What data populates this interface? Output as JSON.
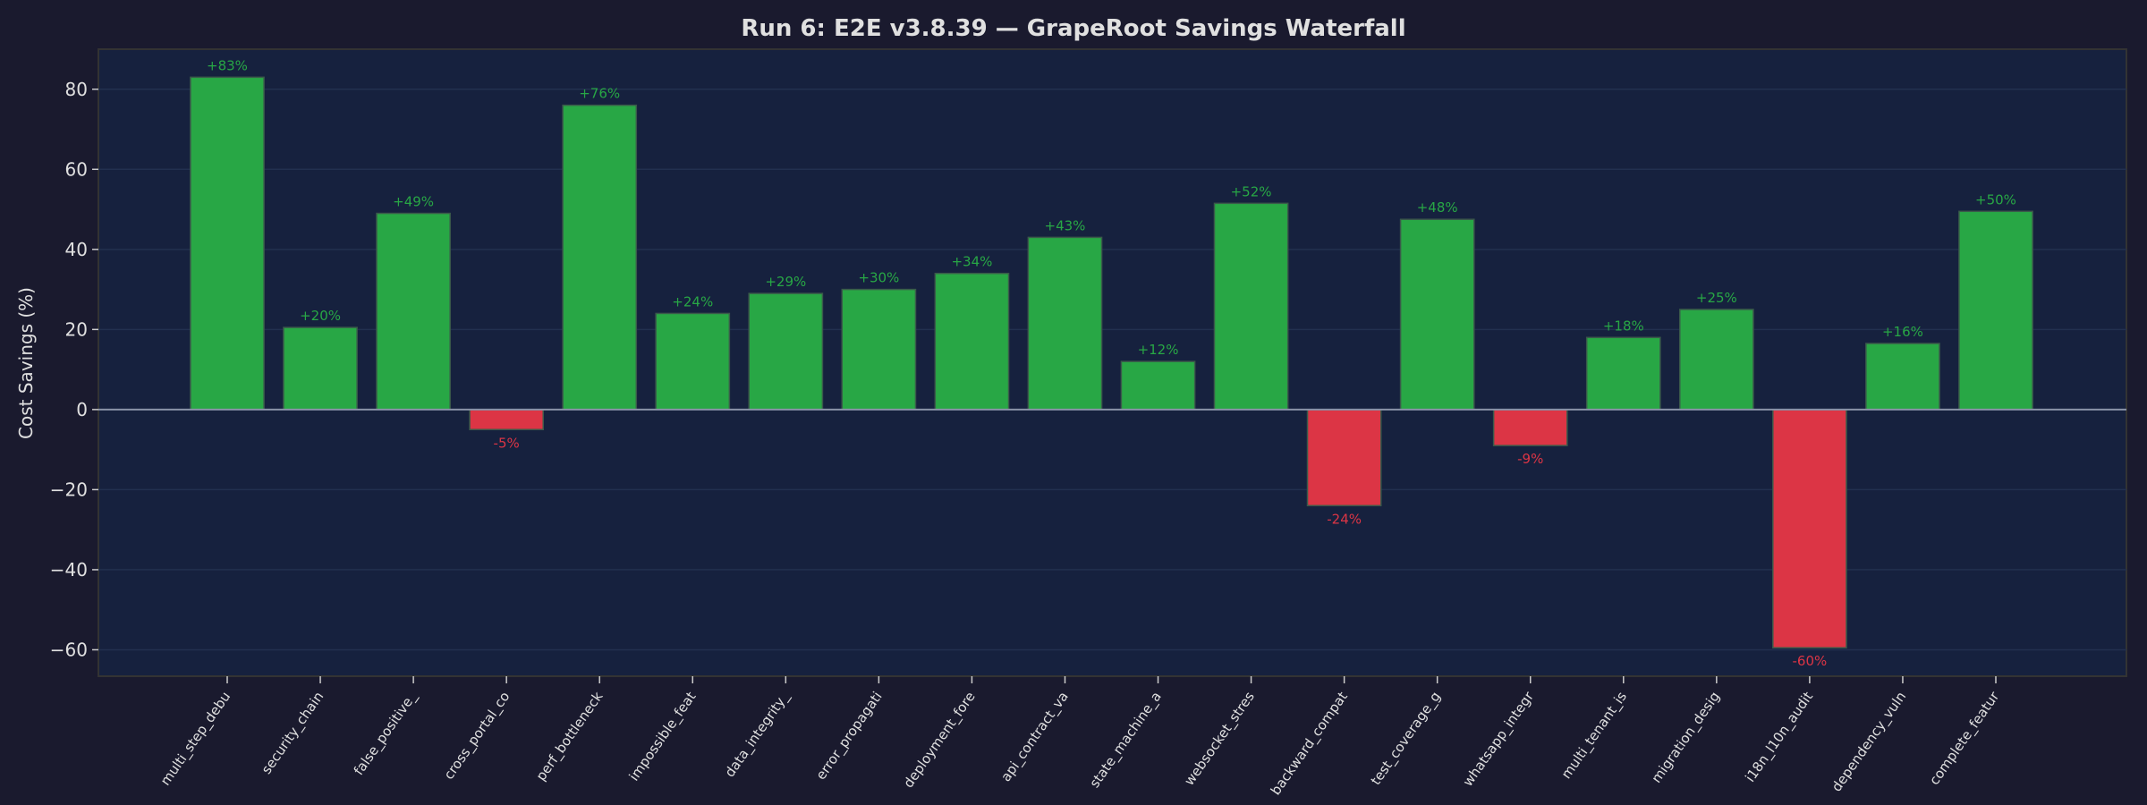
{
  "chart_data": {
    "type": "bar",
    "title": "Run 6: E2E v3.8.39 — GrapeRoot Savings Waterfall",
    "xlabel": "",
    "ylabel": "Cost Savings (%)",
    "ylim": [
      -66.6,
      90
    ],
    "yticks": [
      -60,
      -40,
      -20,
      0,
      20,
      40,
      60,
      80
    ],
    "grid": true,
    "categories": [
      "multi_step_debu",
      "security_chain",
      "false_positive_",
      "cross_portal_co",
      "perf_bottleneck",
      "impossible_feat",
      "data_integrity_",
      "error_propagati",
      "deployment_fore",
      "api_contract_va",
      "state_machine_a",
      "websocket_stres",
      "backward_compat",
      "test_coverage_g",
      "whatsapp_integr",
      "multi_tenant_is",
      "migration_desig",
      "i18n_l10n_audit",
      "dependency_vuln",
      "complete_featur"
    ],
    "values": [
      83,
      20.5,
      49,
      -5,
      76,
      24,
      29,
      30,
      34,
      43,
      12,
      51.5,
      -24,
      47.5,
      -9,
      18,
      25,
      -59.5,
      16.5,
      49.5
    ],
    "data_labels": [
      "+83%",
      "+20%",
      "+49%",
      "-5%",
      "+76%",
      "+24%",
      "+29%",
      "+30%",
      "+34%",
      "+43%",
      "+12%",
      "+52%",
      "-24%",
      "+48%",
      "-9%",
      "+18%",
      "+25%",
      "-60%",
      "+16%",
      "+50%"
    ],
    "colors": {
      "positive": "#28a745",
      "negative": "#dc3545",
      "background": "#1a1a2e",
      "plot_background": "#16213e"
    }
  }
}
